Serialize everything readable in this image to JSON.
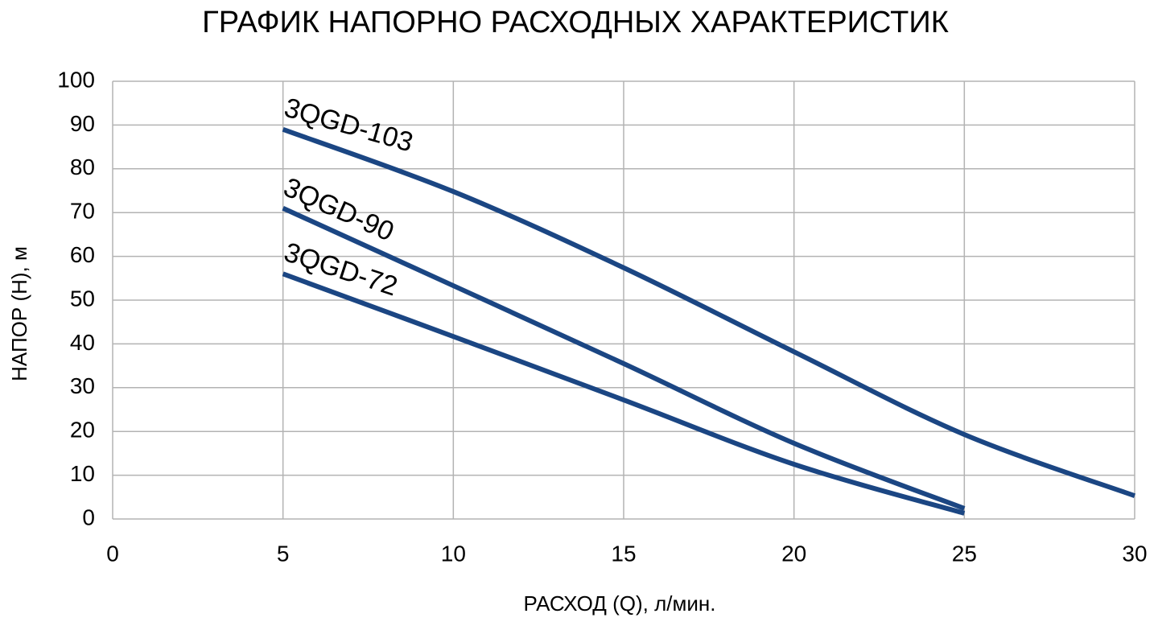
{
  "chart_data": {
    "type": "line",
    "title": "ГРАФИК НАПОРНО РАСХОДНЫХ ХАРАКТЕРИСТИК",
    "x_label": "РАСХОД (Q), л/мин.",
    "y_label": "НАПОР (Н), м",
    "xlim": [
      0,
      30
    ],
    "xticks": [
      0,
      5,
      10,
      15,
      20,
      25,
      30
    ],
    "ylim": [
      0,
      100
    ],
    "yticks": [
      0,
      10,
      20,
      30,
      40,
      50,
      60,
      70,
      80,
      90,
      100
    ],
    "grid": true,
    "series": [
      {
        "name": "3QGD-103",
        "color": "#1b4683",
        "x": [
          5,
          10,
          15,
          20,
          25,
          30
        ],
        "values": [
          89,
          74.8,
          57.4,
          38.2,
          19.3,
          5.3
        ]
      },
      {
        "name": "3QGD-90",
        "color": "#1b4683",
        "x": [
          5,
          10,
          15,
          20,
          25
        ],
        "values": [
          71,
          53.3,
          35.5,
          17.3,
          2.4
        ]
      },
      {
        "name": "3QGD-72",
        "color": "#1b4683",
        "x": [
          5,
          10,
          15,
          20,
          25
        ],
        "values": [
          56,
          41.7,
          27.2,
          12.5,
          1.3
        ]
      }
    ]
  }
}
